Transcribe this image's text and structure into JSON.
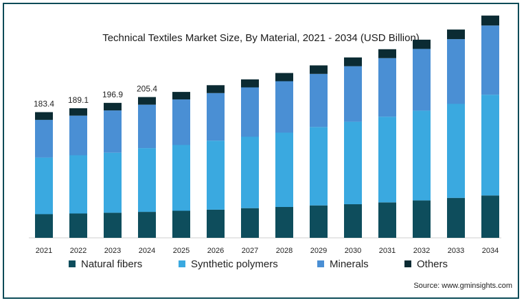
{
  "colors": {
    "natural": "#0e4d5c",
    "synthetic": "#3aa9e0",
    "minerals": "#4a8fd4",
    "others": "#0b2b33",
    "border": "#0b4a57"
  },
  "source": "Source: www.gminsights.com",
  "chart_data": {
    "type": "bar",
    "stacked": true,
    "title": "Technical Textiles Market Size, By Material, 2021 - 2034 (USD Billion)",
    "xlabel": "",
    "ylabel": "",
    "ylim": [
      0,
      320
    ],
    "grid": false,
    "legend_position": "bottom",
    "categories": [
      "2021",
      "2022",
      "2023",
      "2024",
      "2025",
      "2026",
      "2027",
      "2028",
      "2029",
      "2030",
      "2031",
      "2032",
      "2033",
      "2034"
    ],
    "series": [
      {
        "name": "Natural fibers",
        "color_key": "natural",
        "values": [
          34.5,
          35.5,
          36.6,
          37.9,
          39.5,
          41.1,
          43.3,
          45.0,
          47.3,
          49.0,
          51.7,
          54.6,
          58.3,
          61.8
        ]
      },
      {
        "name": "Synthetic polymers",
        "color_key": "synthetic",
        "values": [
          82.6,
          85.0,
          87.7,
          93.0,
          96.0,
          100.7,
          104.2,
          108.5,
          114.4,
          120.4,
          125.0,
          131.0,
          137.2,
          147.0
        ]
      },
      {
        "name": "Minerals",
        "color_key": "minerals",
        "values": [
          55.0,
          57.8,
          61.6,
          63.4,
          66.4,
          69.4,
          72.0,
          75.0,
          77.5,
          81.0,
          85.5,
          90.0,
          94.4,
          101.0
        ]
      },
      {
        "name": "Others",
        "color_key": "others",
        "values": [
          11.3,
          10.8,
          11.0,
          11.1,
          11.0,
          11.5,
          11.7,
          12.0,
          12.4,
          12.8,
          13.0,
          13.5,
          14.0,
          14.5
        ]
      }
    ],
    "totals_labels": [
      {
        "index": 0,
        "text": "183.4"
      },
      {
        "index": 1,
        "text": "189.1"
      },
      {
        "index": 2,
        "text": "196.9"
      },
      {
        "index": 3,
        "text": "205.4"
      }
    ]
  }
}
